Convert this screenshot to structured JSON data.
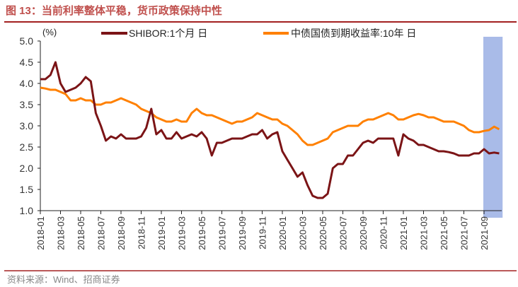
{
  "title": "图 13：当前利率整体平稳，货币政策保持中性",
  "source": "资料来源：Wind、招商证券",
  "colors": {
    "title": "#c0504d",
    "shibor": "#7b1416",
    "bond": "#ff8000",
    "highlight": "#a9bbe8",
    "rule": "#a32020"
  },
  "chart_data": {
    "type": "line",
    "unit_label": "(%)",
    "ylim": [
      1.0,
      5.0
    ],
    "yticks": [
      "1.0",
      "1.5",
      "2.0",
      "2.5",
      "3.0",
      "3.5",
      "4.0",
      "4.5",
      "5.0"
    ],
    "x_start": "2018-01",
    "x_step_months": 0.5,
    "xticks": [
      "2018-01",
      "2018-03",
      "2018-05",
      "2018-07",
      "2018-09",
      "2018-11",
      "2019-01",
      "2019-03",
      "2019-05",
      "2019-07",
      "2019-09",
      "2019-11",
      "2020-01",
      "2020-03",
      "2020-05",
      "2020-07",
      "2020-09",
      "2020-11",
      "2021-01",
      "2021-03",
      "2021-05",
      "2021-07",
      "2021-09"
    ],
    "highlight_range": [
      "2021-09",
      "2021-10"
    ],
    "series": [
      {
        "name": "SHIBOR:1个月 日",
        "color": "#7b1416",
        "values": [
          4.1,
          4.1,
          4.2,
          4.5,
          4.0,
          3.8,
          3.85,
          3.9,
          4.0,
          4.15,
          4.05,
          3.3,
          3.0,
          2.65,
          2.75,
          2.7,
          2.8,
          2.7,
          2.7,
          2.7,
          2.75,
          2.95,
          3.4,
          2.8,
          2.9,
          2.7,
          2.7,
          2.85,
          2.7,
          2.75,
          2.8,
          2.75,
          2.85,
          2.7,
          2.3,
          2.6,
          2.6,
          2.65,
          2.7,
          2.7,
          2.7,
          2.75,
          2.8,
          2.8,
          2.9,
          2.7,
          2.8,
          2.85,
          2.4,
          2.2,
          2.0,
          1.8,
          1.9,
          1.6,
          1.35,
          1.3,
          1.3,
          1.4,
          2.0,
          2.1,
          2.1,
          2.3,
          2.3,
          2.45,
          2.6,
          2.65,
          2.6,
          2.7,
          2.7,
          2.7,
          2.7,
          2.3,
          2.8,
          2.7,
          2.65,
          2.55,
          2.55,
          2.5,
          2.45,
          2.4,
          2.4,
          2.38,
          2.35,
          2.3,
          2.3,
          2.3,
          2.35,
          2.35,
          2.45,
          2.35,
          2.37,
          2.35
        ]
      },
      {
        "name": "中债国债到期收益率:10年 日",
        "color": "#ff8000",
        "values": [
          3.9,
          3.88,
          3.85,
          3.85,
          3.8,
          3.75,
          3.6,
          3.6,
          3.65,
          3.6,
          3.6,
          3.5,
          3.5,
          3.55,
          3.55,
          3.6,
          3.65,
          3.6,
          3.55,
          3.5,
          3.4,
          3.35,
          3.3,
          3.2,
          3.15,
          3.1,
          3.1,
          3.15,
          3.1,
          3.1,
          3.3,
          3.4,
          3.3,
          3.25,
          3.25,
          3.2,
          3.15,
          3.1,
          3.05,
          3.1,
          3.1,
          3.15,
          3.2,
          3.3,
          3.25,
          3.2,
          3.15,
          3.15,
          3.05,
          3.0,
          2.9,
          2.8,
          2.65,
          2.55,
          2.55,
          2.6,
          2.65,
          2.7,
          2.85,
          2.9,
          2.95,
          3.0,
          3.0,
          3.0,
          3.1,
          3.15,
          3.15,
          3.2,
          3.25,
          3.3,
          3.25,
          3.15,
          3.15,
          3.2,
          3.25,
          3.28,
          3.25,
          3.2,
          3.2,
          3.15,
          3.1,
          3.1,
          3.1,
          3.05,
          3.0,
          2.9,
          2.85,
          2.85,
          2.88,
          2.9,
          2.98,
          2.92
        ]
      }
    ]
  }
}
